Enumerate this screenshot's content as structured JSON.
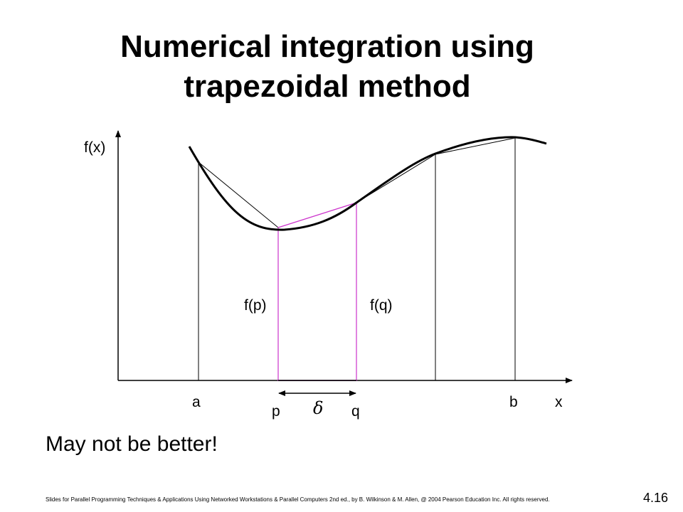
{
  "title": {
    "line1": "Numerical integration using",
    "line2": "trapezoidal method"
  },
  "diagram": {
    "y_axis_label": "f(x)",
    "x_axis_label": "x",
    "label_a": "a",
    "label_b": "b",
    "label_p": "p",
    "label_q": "q",
    "label_delta": "δ",
    "label_fp": "f(p)",
    "label_fq": "f(q)",
    "highlight_color": "#cc33cc"
  },
  "note": "May not be better!",
  "footer": "Slides for Parallel Programming Techniques & Applications Using Networked Workstations & Parallel Computers 2nd ed., by B. Wilkinson & M. Allen, @ 2004 Pearson Education Inc. All rights reserved.",
  "slide_number": "4.16"
}
